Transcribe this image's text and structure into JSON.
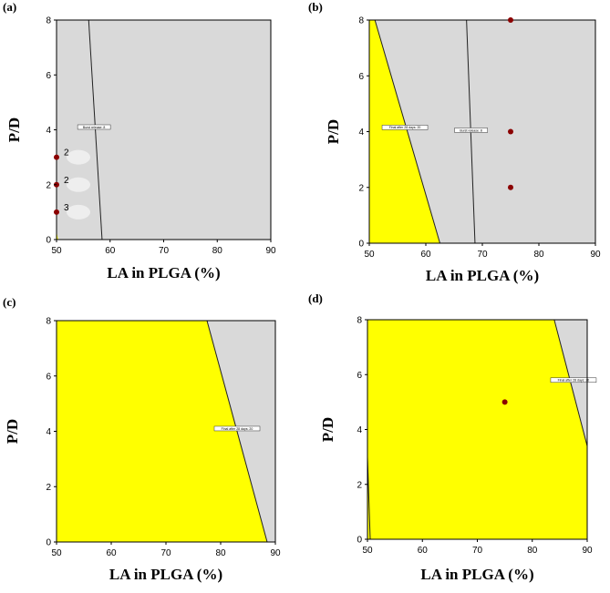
{
  "chart_data": [
    {
      "type": "contour",
      "panel_label": "(a)",
      "xlabel": "LA in PLGA (%)",
      "ylabel": "P/D",
      "xlim": [
        50,
        90
      ],
      "ylim": [
        0,
        8
      ],
      "xticks": [
        50,
        60,
        70,
        80,
        90
      ],
      "yticks": [
        0,
        2,
        4,
        6,
        8
      ],
      "background_color": "#d9d9d9",
      "region_color": "#ffff00",
      "yellow_region": [
        [
          50,
          0
        ],
        [
          50,
          0.3
        ],
        [
          50.3,
          0
        ]
      ],
      "lines": [
        {
          "points": [
            [
              56,
              8
            ],
            [
              58.5,
              0
            ]
          ],
          "label": "Burst release: 8",
          "label_at": [
            57,
            4.1
          ]
        }
      ],
      "points": [
        {
          "x": 50,
          "y": 3,
          "label": "2"
        },
        {
          "x": 50,
          "y": 2,
          "label": "2"
        },
        {
          "x": 50,
          "y": 1,
          "label": "3"
        }
      ]
    },
    {
      "type": "contour",
      "panel_label": "(b)",
      "xlabel": "LA in PLGA (%)",
      "ylabel": "P/D",
      "xlim": [
        50,
        90
      ],
      "ylim": [
        0,
        8
      ],
      "xticks": [
        50,
        60,
        70,
        80,
        90
      ],
      "yticks": [
        0,
        2,
        4,
        6,
        8
      ],
      "background_color": "#d9d9d9",
      "region_color": "#ffff00",
      "yellow_region": [
        [
          50,
          0
        ],
        [
          50,
          8
        ],
        [
          51,
          8
        ],
        [
          62.5,
          0
        ]
      ],
      "lines": [
        {
          "points": [
            [
              51,
              8
            ],
            [
              62.5,
              0
            ]
          ],
          "label": "Final after 28 days: 20",
          "label_at": [
            56.3,
            4.15
          ]
        },
        {
          "points": [
            [
              67.2,
              8
            ],
            [
              68.7,
              0
            ]
          ],
          "label": "Burst release: 8",
          "label_at": [
            68,
            4.05
          ]
        }
      ],
      "points": [
        {
          "x": 75,
          "y": 8
        },
        {
          "x": 75,
          "y": 4
        },
        {
          "x": 75,
          "y": 2
        }
      ]
    },
    {
      "type": "contour",
      "panel_label": "(c)",
      "xlabel": "LA in PLGA (%)",
      "ylabel": "P/D",
      "xlim": [
        50,
        90
      ],
      "ylim": [
        0,
        8
      ],
      "xticks": [
        50,
        60,
        70,
        80,
        90
      ],
      "yticks": [
        0,
        2,
        4,
        6,
        8
      ],
      "background_color": "#d9d9d9",
      "region_color": "#ffff00",
      "yellow_region": [
        [
          50,
          0
        ],
        [
          50,
          8
        ],
        [
          77.5,
          8
        ],
        [
          88.5,
          0
        ]
      ],
      "lines": [
        {
          "points": [
            [
              77.5,
              8
            ],
            [
              88.5,
              0
            ]
          ],
          "label": "Final after 28 days: 20",
          "label_at": [
            83,
            4.1
          ]
        }
      ],
      "points": []
    },
    {
      "type": "contour",
      "panel_label": "(d)",
      "xlabel": "LA in PLGA (%)",
      "ylabel": "P/D",
      "xlim": [
        50,
        90
      ],
      "ylim": [
        0,
        8
      ],
      "xticks": [
        50,
        60,
        70,
        80,
        90
      ],
      "yticks": [
        0,
        2,
        4,
        6,
        8
      ],
      "background_color": "#d9d9d9",
      "region_color": "#ffff00",
      "yellow_region": [
        [
          50,
          0
        ],
        [
          50,
          8
        ],
        [
          84,
          8
        ],
        [
          90,
          3.4
        ],
        [
          90,
          0
        ]
      ],
      "lines": [
        {
          "points": [
            [
              84,
              8
            ],
            [
              90,
              3.4
            ]
          ],
          "label": "Final after 28 days: 20",
          "label_at": [
            87.5,
            5.8
          ]
        },
        {
          "points": [
            [
              50,
              3
            ],
            [
              50.5,
              0
            ]
          ]
        }
      ],
      "points": [
        {
          "x": 75,
          "y": 5
        }
      ]
    }
  ]
}
